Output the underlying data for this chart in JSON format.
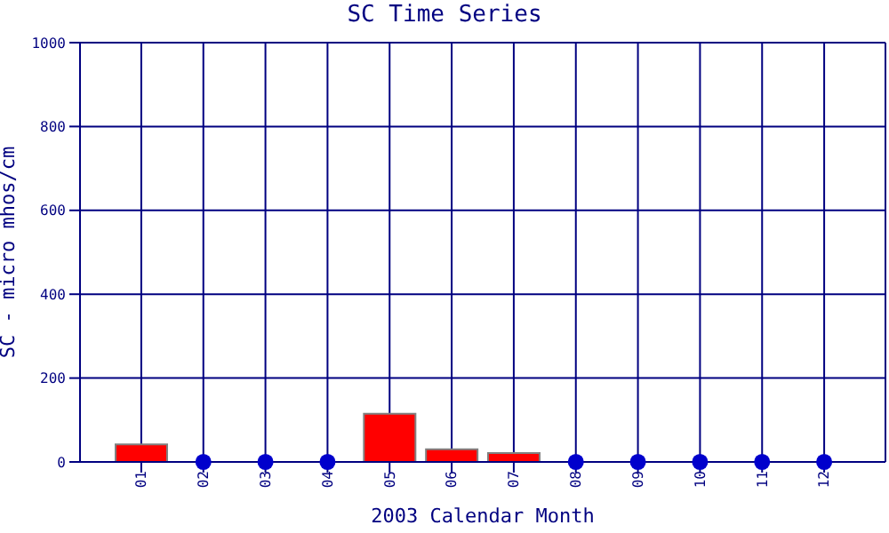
{
  "chart_data": {
    "type": "bar",
    "title": "SC Time Series",
    "xlabel": "2003 Calendar Month",
    "ylabel": "SC - micro mhos/cm",
    "categories": [
      "01",
      "02",
      "03",
      "04",
      "05",
      "06",
      "07",
      "08",
      "09",
      "10",
      "11",
      "12"
    ],
    "series": [
      {
        "color": "#ff0000",
        "values": [
          42,
          null,
          null,
          null,
          115,
          30,
          21,
          null,
          null,
          null,
          null,
          null
        ]
      },
      {
        "type": "scatter",
        "color": "#0000cc",
        "marker": "circle",
        "values": [
          null,
          0,
          0,
          0,
          null,
          null,
          null,
          0,
          0,
          0,
          0,
          0
        ]
      }
    ],
    "ylim": [
      0,
      1000
    ],
    "yticks": [
      0,
      200,
      400,
      600,
      800,
      1000
    ],
    "grid": true
  }
}
